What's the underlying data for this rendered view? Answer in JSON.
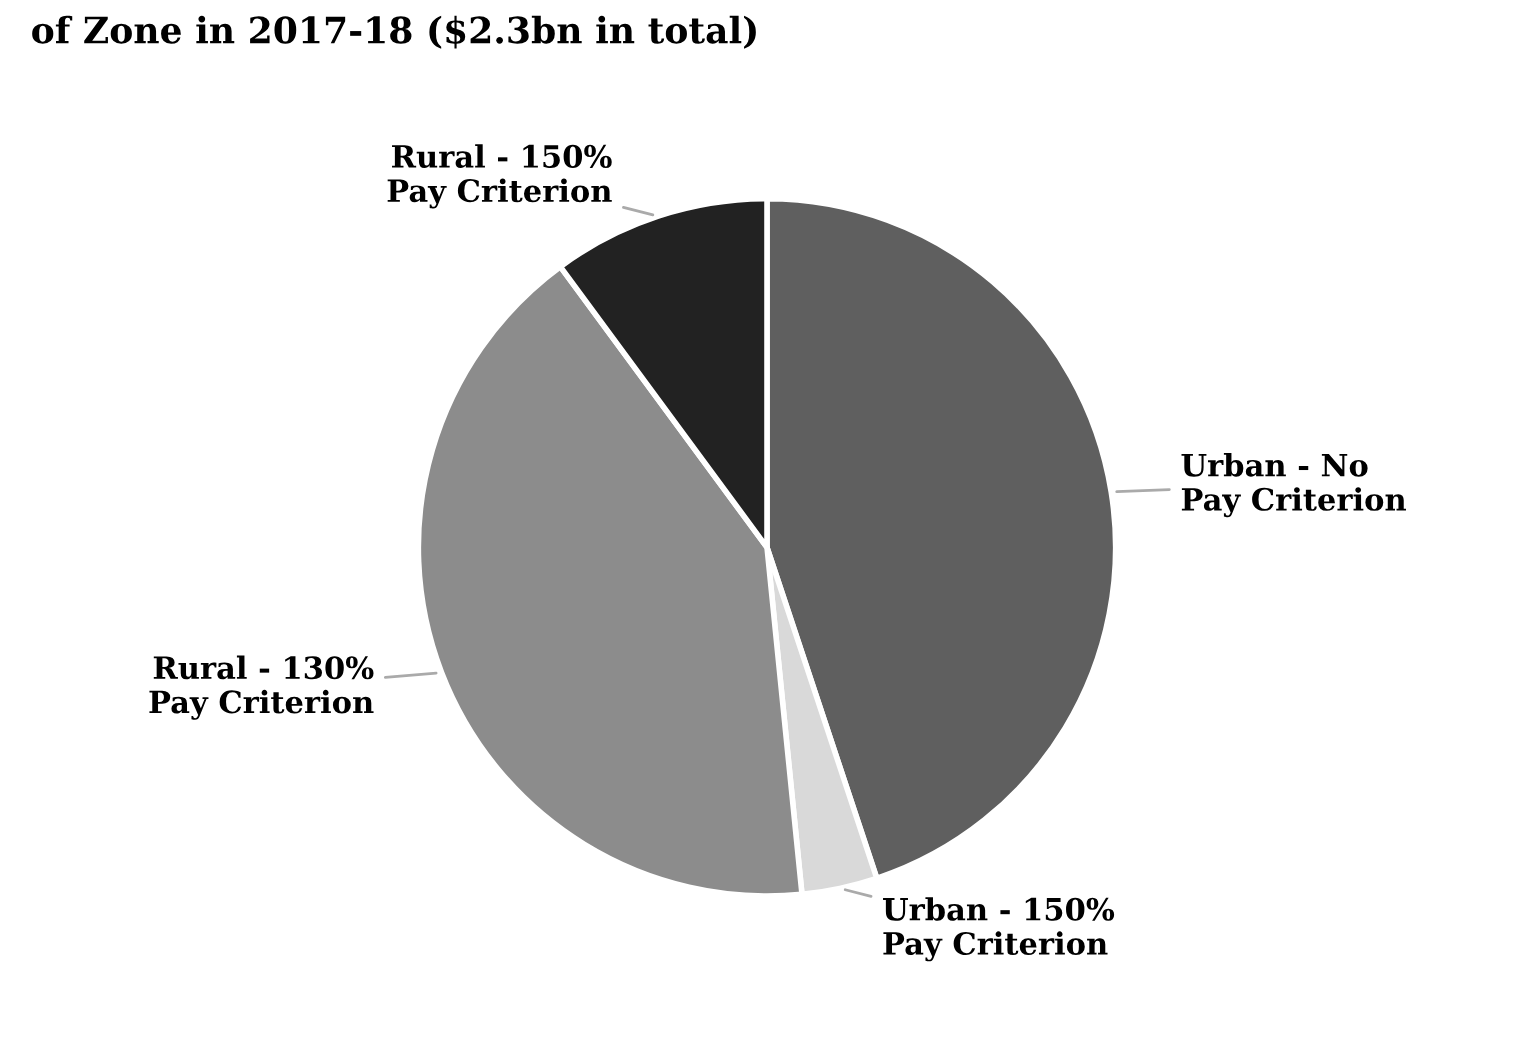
{
  "chart_data": {
    "type": "pie",
    "title": "of Zone in 2017-18 ($2.3bn in total)",
    "categories": [
      "Urban - No\nPay Criterion",
      "Urban - 150%\nPay Criterion",
      "Rural - 130%\nPay Criterion",
      "Rural - 150%\nPay Criterion"
    ],
    "values": [
      44.9,
      3.5,
      41.5,
      10.1
    ],
    "colors": [
      "#5f5f5f",
      "#d9d9d9",
      "#8c8c8c",
      "#222222"
    ],
    "legend": false
  }
}
